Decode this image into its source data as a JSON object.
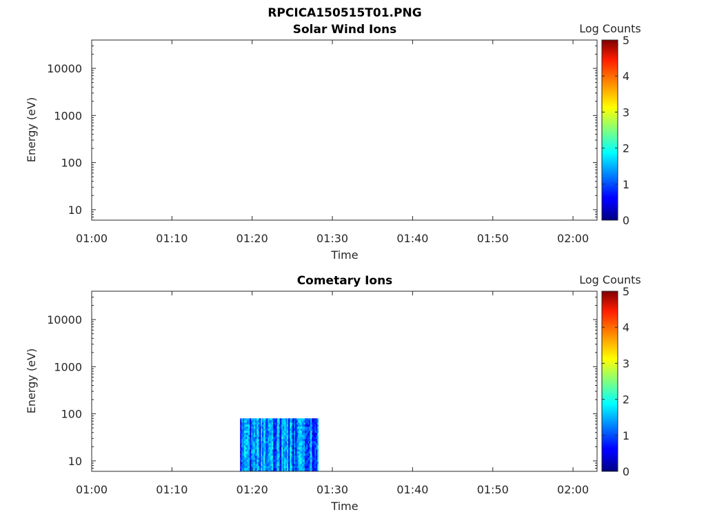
{
  "title": "RPCICA150515T01.PNG",
  "colorbar": {
    "label": "Log Counts",
    "ticks": [
      "0",
      "1",
      "2",
      "3",
      "4",
      "5"
    ],
    "range": [
      0,
      5
    ],
    "colormap": "jet"
  },
  "chart_data": [
    {
      "type": "heatmap",
      "title": "Solar Wind Ions",
      "xlabel": "Time",
      "ylabel": "Energy (eV)",
      "xticks": [
        "01:00",
        "01:10",
        "01:20",
        "01:30",
        "01:40",
        "01:50",
        "02:00"
      ],
      "xlim": [
        "01:00",
        "02:03"
      ],
      "yscale": "log",
      "yticks": [
        "10",
        "100",
        "1000",
        "10000"
      ],
      "ylim": [
        6,
        40000
      ],
      "data": []
    },
    {
      "type": "heatmap",
      "title": "Cometary Ions",
      "xlabel": "Time",
      "ylabel": "Energy (eV)",
      "xticks": [
        "01:00",
        "01:10",
        "01:20",
        "01:30",
        "01:40",
        "01:50",
        "02:00"
      ],
      "xlim": [
        "01:00",
        "02:03"
      ],
      "yscale": "log",
      "yticks": [
        "10",
        "100",
        "1000",
        "10000"
      ],
      "ylim": [
        6,
        40000
      ],
      "data": [
        {
          "time_range": [
            "01:18:30",
            "01:28:15"
          ],
          "energy_range": [
            6,
            80
          ],
          "log_counts_range": [
            0.2,
            2.2
          ]
        }
      ]
    }
  ]
}
